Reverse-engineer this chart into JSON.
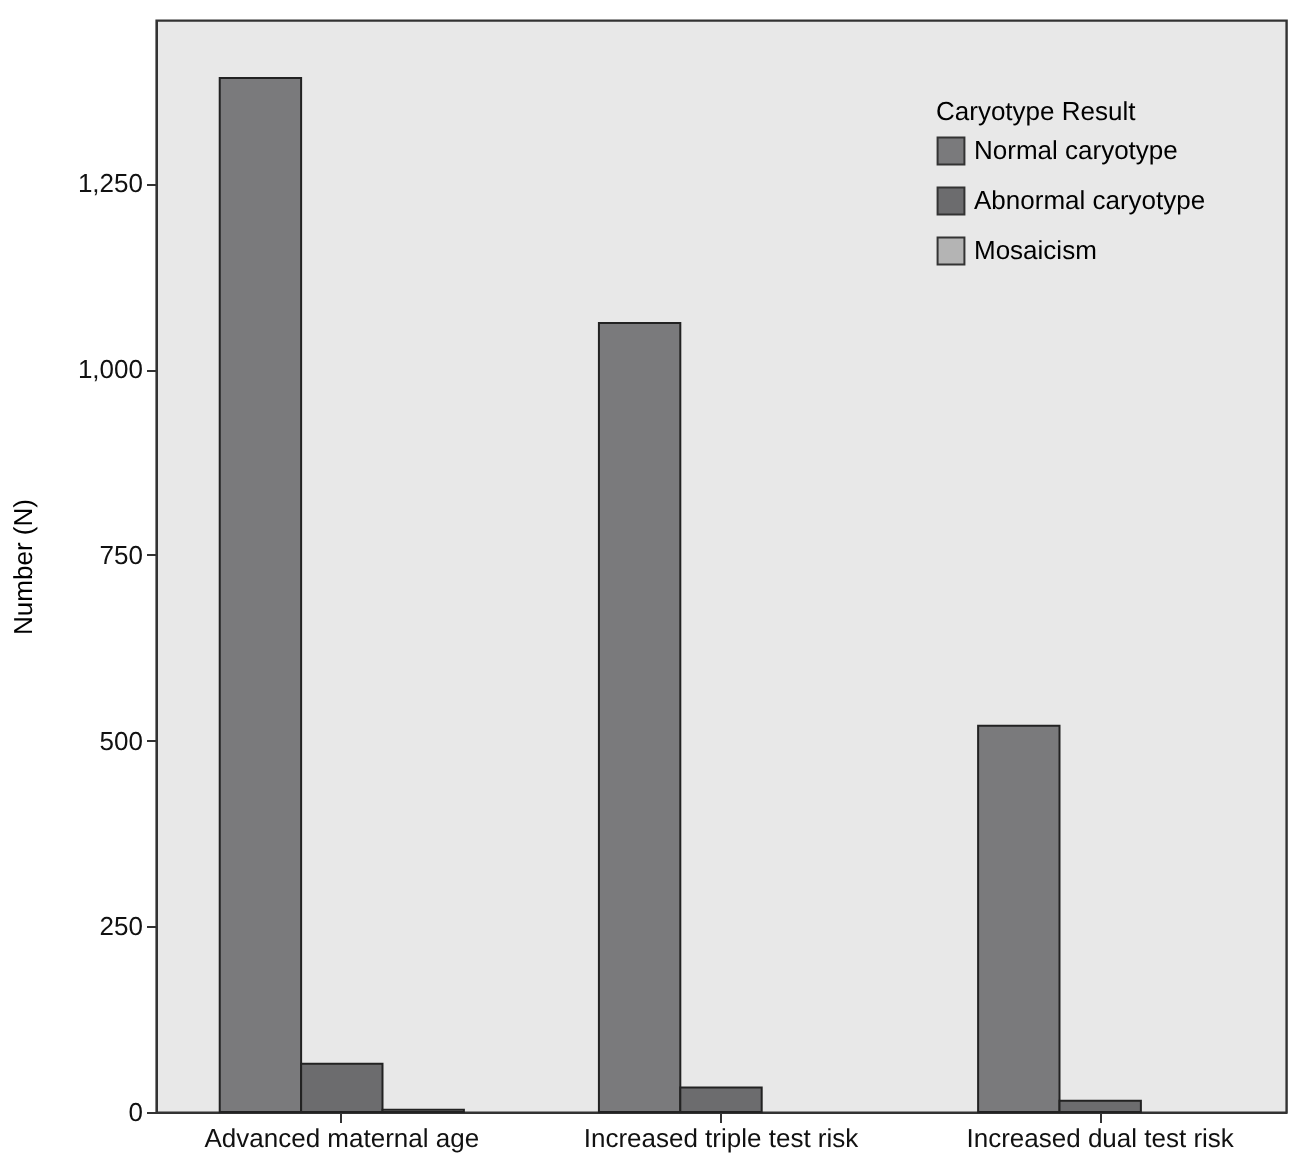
{
  "chart_data": {
    "type": "bar",
    "ylabel": "Number (N)",
    "legend_title": "Caryotype Result",
    "legend": "top right",
    "grid": false,
    "categories": [
      "Advanced maternal age",
      "Increased triple test risk",
      "Increased dual test risk"
    ],
    "series": [
      {
        "name": "Normal caryotype",
        "color": "#7a7a7c",
        "values": [
          1392,
          1062,
          520
        ]
      },
      {
        "name": "Abnormal caryotype",
        "color": "#6c6c6e",
        "values": [
          65,
          33,
          15
        ]
      },
      {
        "name": "Mosaicism",
        "color": "#b4b4b4",
        "values": [
          3,
          null,
          null
        ]
      }
    ],
    "ylim": [
      0,
      1470
    ],
    "yticks": [
      {
        "value": 0,
        "label": "0"
      },
      {
        "value": 250,
        "label": "250"
      },
      {
        "value": 500,
        "label": "500"
      },
      {
        "value": 750,
        "label": "750"
      },
      {
        "value": 1000,
        "label": "1,000"
      },
      {
        "value": 1250,
        "label": "1,250"
      }
    ]
  }
}
